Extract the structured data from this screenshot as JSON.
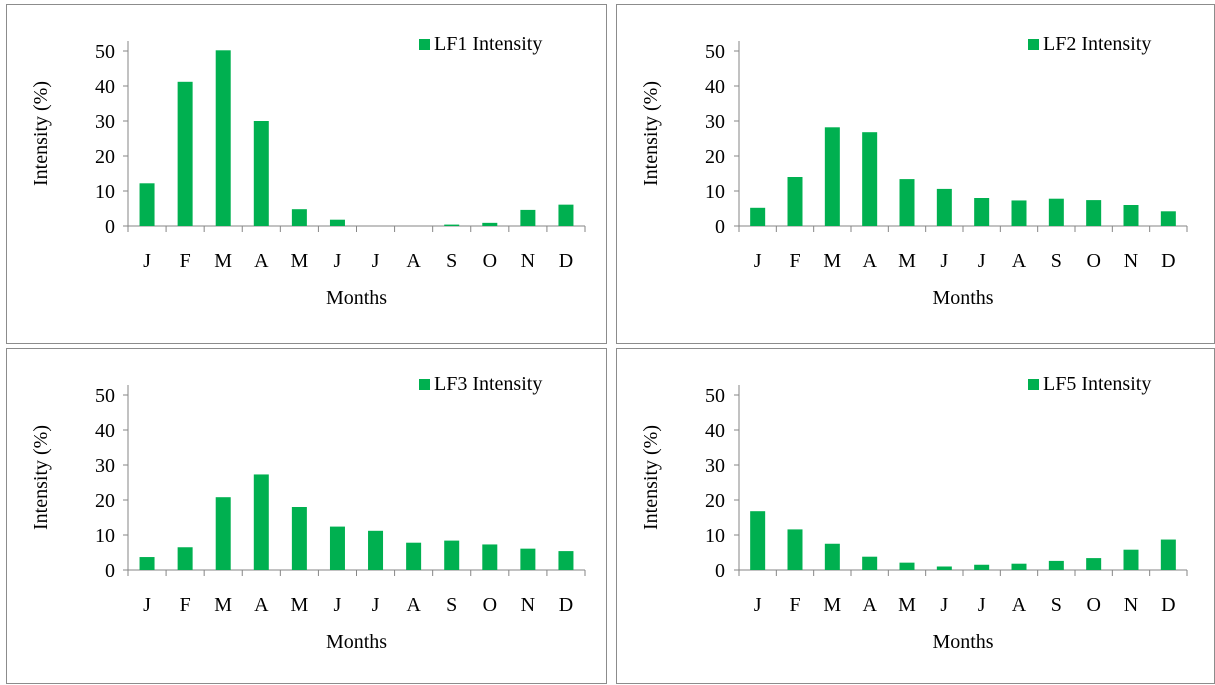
{
  "chart_data": [
    {
      "type": "bar",
      "categories": [
        "J",
        "F",
        "M",
        "A",
        "M",
        "J",
        "J",
        "A",
        "S",
        "O",
        "N",
        "D"
      ],
      "series": [
        {
          "name": "LF1 Intensity",
          "values": [
            12.2,
            41.2,
            50.2,
            30.0,
            4.8,
            1.8,
            0,
            0,
            0.4,
            0.9,
            4.6,
            6.1
          ]
        }
      ],
      "xlabel": "Months",
      "ylabel": "Intensity (%)",
      "ylim": [
        0,
        50
      ],
      "yticks": [
        0,
        10,
        20,
        30,
        40,
        50
      ],
      "legend": "top-right",
      "grid": false,
      "color": "#00b050"
    },
    {
      "type": "bar",
      "categories": [
        "J",
        "F",
        "M",
        "A",
        "M",
        "J",
        "J",
        "A",
        "S",
        "O",
        "N",
        "D"
      ],
      "series": [
        {
          "name": "LF2 Intensity",
          "values": [
            5.2,
            14.0,
            28.2,
            26.8,
            13.4,
            10.6,
            8.0,
            7.3,
            7.8,
            7.4,
            6.0,
            4.2
          ]
        }
      ],
      "xlabel": "Months",
      "ylabel": "Intensity (%)",
      "ylim": [
        0,
        50
      ],
      "yticks": [
        0,
        10,
        20,
        30,
        40,
        50
      ],
      "legend": "top-right",
      "grid": false,
      "color": "#00b050"
    },
    {
      "type": "bar",
      "categories": [
        "J",
        "F",
        "M",
        "A",
        "M",
        "J",
        "J",
        "A",
        "S",
        "O",
        "N",
        "D"
      ],
      "series": [
        {
          "name": "LF3 Intensity",
          "values": [
            3.7,
            6.5,
            20.8,
            27.3,
            18.0,
            12.4,
            11.2,
            7.8,
            8.4,
            7.3,
            6.1,
            5.4
          ]
        }
      ],
      "xlabel": "Months",
      "ylabel": "Intensity (%)",
      "ylim": [
        0,
        50
      ],
      "yticks": [
        0,
        10,
        20,
        30,
        40,
        50
      ],
      "legend": "top-right",
      "grid": false,
      "color": "#00b050"
    },
    {
      "type": "bar",
      "categories": [
        "J",
        "F",
        "M",
        "A",
        "M",
        "J",
        "J",
        "A",
        "S",
        "O",
        "N",
        "D"
      ],
      "series": [
        {
          "name": "LF5 Intensity",
          "values": [
            16.8,
            11.6,
            7.5,
            3.8,
            2.1,
            1.0,
            1.5,
            1.8,
            2.6,
            3.4,
            5.8,
            8.7
          ]
        }
      ],
      "xlabel": "Months",
      "ylabel": "Intensity (%)",
      "ylim": [
        0,
        50
      ],
      "yticks": [
        0,
        10,
        20,
        30,
        40,
        50
      ],
      "legend": "top-right",
      "grid": false,
      "color": "#00b050"
    }
  ]
}
